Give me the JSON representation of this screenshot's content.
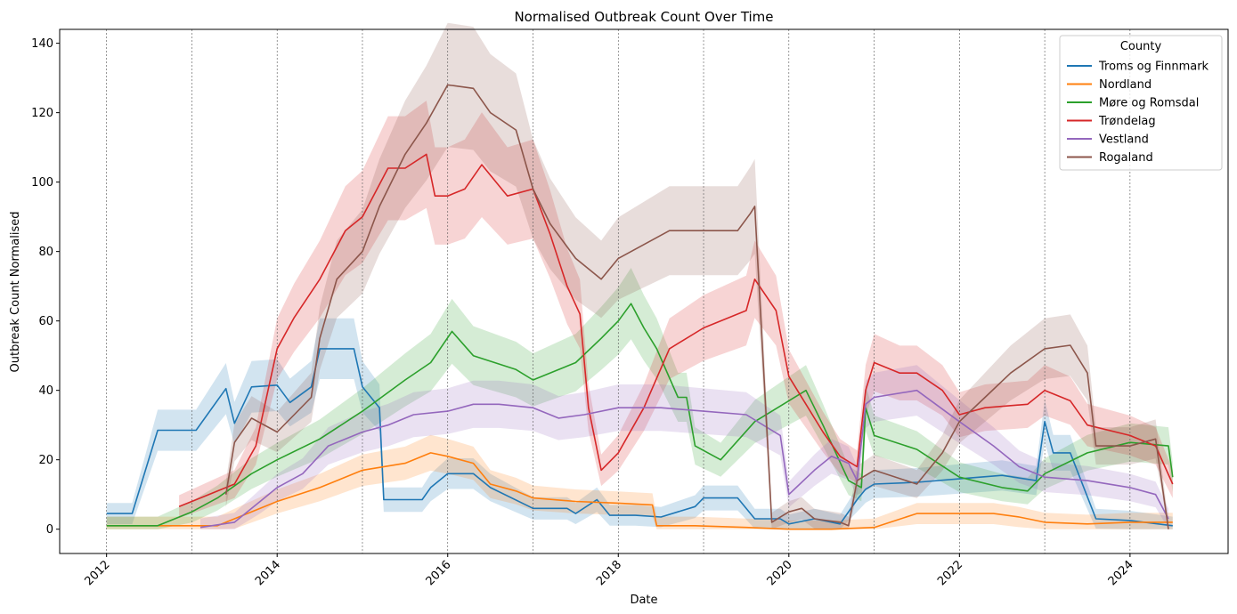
{
  "chart_data": {
    "type": "line",
    "title": "Normalised Outbreak Count Over Time",
    "xlabel": "Date",
    "ylabel": "Outbreak Count Normalised",
    "xlim": [
      2011.45,
      2025.15
    ],
    "ylim": [
      -7,
      144
    ],
    "x_ticks": [
      2012,
      2014,
      2016,
      2018,
      2020,
      2022,
      2024
    ],
    "y_ticks": [
      0,
      20,
      40,
      60,
      80,
      100,
      120,
      140
    ],
    "vlines": [
      2012,
      2013,
      2014,
      2015,
      2016,
      2017,
      2018,
      2019,
      2020,
      2021,
      2022,
      2023,
      2024
    ],
    "grid": false,
    "legend": {
      "title": "County",
      "position": "top-right"
    },
    "series": [
      {
        "name": "Troms og Finnmark",
        "color": "#1f77b4",
        "x": [
          2012.0,
          2012.3,
          2012.6,
          2013.05,
          2013.4,
          2013.5,
          2013.7,
          2014.0,
          2014.15,
          2014.4,
          2014.5,
          2014.9,
          2015.0,
          2015.2,
          2015.25,
          2015.7,
          2015.8,
          2016.0,
          2016.3,
          2016.5,
          2017.0,
          2017.4,
          2017.5,
          2017.75,
          2017.9,
          2018.2,
          2018.5,
          2018.9,
          2019.0,
          2019.4,
          2019.6,
          2019.9,
          2020.0,
          2020.3,
          2020.6,
          2020.8,
          2020.9,
          2021.0,
          2021.5,
          2022.0,
          2022.5,
          2022.9,
          2023.0,
          2023.1,
          2023.3,
          2023.6,
          2024.0,
          2024.5
        ],
        "y": [
          4.5,
          4.5,
          28.5,
          28.5,
          40.5,
          30.5,
          41,
          41.5,
          36.5,
          41,
          52,
          52,
          41,
          35,
          8.5,
          8.5,
          12,
          16,
          16,
          12,
          6,
          6,
          4.5,
          8.5,
          4,
          4,
          3.5,
          6.5,
          9,
          9,
          3,
          3,
          1.5,
          3,
          1.5,
          8.5,
          11.5,
          13,
          13.5,
          14.5,
          15.5,
          14,
          31,
          22,
          22,
          3,
          2.5,
          1
        ]
      },
      {
        "name": "Nordland",
        "color": "#ff7f0e",
        "x": [
          2012.0,
          2013.3,
          2013.5,
          2014.0,
          2014.5,
          2015.0,
          2015.5,
          2015.8,
          2016.0,
          2016.3,
          2016.5,
          2016.8,
          2017.0,
          2017.5,
          2018.0,
          2018.4,
          2018.45,
          2018.9,
          2019.5,
          2020.0,
          2020.5,
          2021.0,
          2021.5,
          2022.0,
          2022.4,
          2022.7,
          2023.0,
          2023.5,
          2024.0,
          2024.5
        ],
        "y": [
          1,
          1,
          3,
          8,
          12,
          17,
          19,
          22,
          21,
          19,
          13,
          11,
          9,
          8,
          7.5,
          7,
          1,
          1,
          0.5,
          0,
          0,
          0.5,
          4.5,
          4.5,
          4.5,
          3.5,
          2,
          1.5,
          2,
          2
        ]
      },
      {
        "name": "Møre og Romsdal",
        "color": "#2ca02c",
        "x": [
          2012.0,
          2012.6,
          2013.0,
          2013.3,
          2013.7,
          2014.0,
          2014.5,
          2015.0,
          2015.5,
          2015.8,
          2016.05,
          2016.3,
          2016.8,
          2017.0,
          2017.5,
          2017.8,
          2018.0,
          2018.15,
          2018.3,
          2018.45,
          2018.7,
          2018.8,
          2018.9,
          2019.2,
          2019.6,
          2020.0,
          2020.2,
          2020.4,
          2020.55,
          2020.7,
          2020.85,
          2020.9,
          2021.0,
          2021.5,
          2022.0,
          2022.5,
          2022.8,
          2023.0,
          2023.5,
          2024.0,
          2024.45,
          2024.5
        ],
        "y": [
          1,
          1,
          5,
          9,
          16,
          20,
          26,
          34,
          43,
          48,
          57,
          50,
          46,
          43,
          48,
          55,
          60,
          65,
          58,
          52,
          38,
          38,
          24,
          20,
          31,
          37,
          40,
          30,
          22,
          14,
          12,
          35,
          27,
          23,
          15,
          12,
          11,
          16,
          22,
          25,
          24,
          15
        ]
      },
      {
        "name": "Trøndelag",
        "color": "#d62728",
        "x": [
          2012.85,
          2013.1,
          2013.5,
          2013.75,
          2014.0,
          2014.2,
          2014.5,
          2014.8,
          2015.0,
          2015.3,
          2015.5,
          2015.75,
          2015.85,
          2016.0,
          2016.2,
          2016.4,
          2016.7,
          2017.0,
          2017.2,
          2017.4,
          2017.55,
          2017.65,
          2017.8,
          2018.0,
          2018.3,
          2018.6,
          2019.0,
          2019.5,
          2019.6,
          2019.85,
          2020.0,
          2020.2,
          2020.4,
          2020.6,
          2020.8,
          2020.9,
          2021.0,
          2021.3,
          2021.5,
          2021.8,
          2022.0,
          2022.3,
          2022.8,
          2023.0,
          2023.3,
          2023.5,
          2024.0,
          2024.3,
          2024.5
        ],
        "y": [
          6.5,
          9,
          13,
          24,
          52,
          61,
          72,
          86,
          90,
          104,
          104,
          108,
          96,
          96,
          98,
          105,
          96,
          98,
          85,
          70,
          62,
          35,
          17,
          22,
          35,
          52,
          58,
          63,
          72,
          63,
          44,
          36,
          28,
          21,
          18,
          40,
          48,
          45,
          45,
          40,
          33,
          35,
          36,
          40,
          37,
          30,
          27,
          24,
          13
        ]
      },
      {
        "name": "Vestland",
        "color": "#9467bd",
        "x": [
          2013.1,
          2013.5,
          2013.8,
          2014.0,
          2014.3,
          2014.6,
          2015.0,
          2015.3,
          2015.6,
          2016.0,
          2016.3,
          2016.6,
          2017.0,
          2017.3,
          2017.6,
          2018.0,
          2018.5,
          2019.0,
          2019.5,
          2019.9,
          2020.0,
          2020.3,
          2020.5,
          2020.7,
          2020.8,
          2020.9,
          2021.0,
          2021.5,
          2022.0,
          2022.4,
          2022.7,
          2023.0,
          2023.5,
          2024.0,
          2024.3,
          2024.45
        ],
        "y": [
          0.5,
          2,
          8,
          12,
          16,
          24,
          28,
          30,
          33,
          34,
          36,
          36,
          35,
          32,
          33,
          35,
          35,
          34,
          33,
          27,
          10,
          17,
          21,
          19,
          14,
          36,
          38,
          40,
          31,
          24,
          18,
          15,
          14,
          12,
          10,
          3
        ]
      },
      {
        "name": "Rogaland",
        "color": "#8c564b",
        "x": [
          2013.4,
          2013.5,
          2013.7,
          2014.0,
          2014.2,
          2014.4,
          2014.5,
          2014.7,
          2015.0,
          2015.2,
          2015.5,
          2015.75,
          2016.0,
          2016.3,
          2016.5,
          2016.8,
          2017.0,
          2017.2,
          2017.5,
          2017.8,
          2018.0,
          2018.3,
          2018.6,
          2019.0,
          2019.4,
          2019.55,
          2019.6,
          2019.75,
          2019.8,
          2020.0,
          2020.15,
          2020.3,
          2020.6,
          2020.7,
          2020.8,
          2021.0,
          2021.5,
          2021.8,
          2022.0,
          2022.3,
          2022.6,
          2023.0,
          2023.3,
          2023.5,
          2023.6,
          2024.0,
          2024.3,
          2024.45
        ],
        "y": [
          10,
          25,
          32,
          28,
          33,
          38,
          55,
          72,
          80,
          93,
          108,
          117,
          128,
          127,
          120,
          115,
          98,
          88,
          78,
          72,
          78,
          82,
          86,
          86,
          86,
          91,
          93,
          25,
          2,
          5,
          6,
          3,
          2,
          1,
          14,
          17,
          13,
          22,
          31,
          38,
          45,
          52,
          53,
          45,
          24,
          24,
          26,
          0
        ]
      }
    ]
  }
}
